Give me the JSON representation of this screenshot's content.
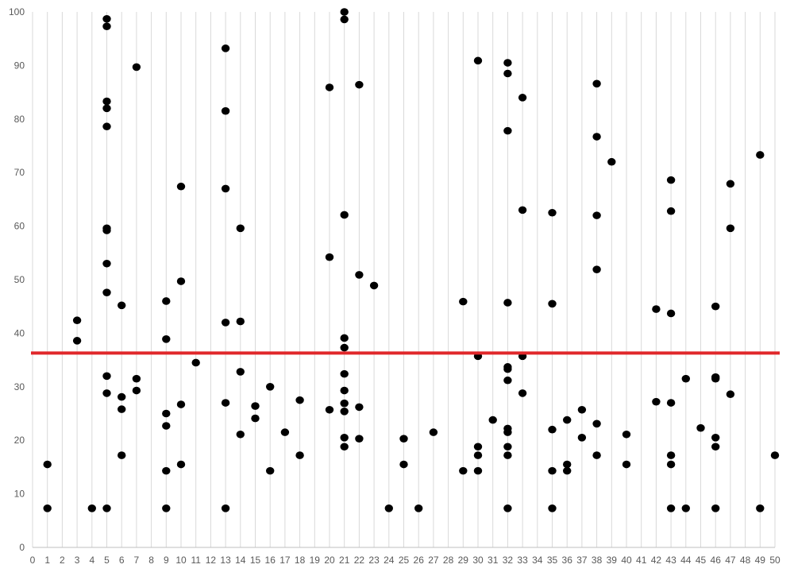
{
  "chart_data": {
    "type": "scatter",
    "xlim": [
      0,
      50
    ],
    "ylim": [
      0,
      100
    ],
    "x_ticks": [
      0,
      1,
      2,
      3,
      4,
      5,
      6,
      7,
      8,
      9,
      10,
      11,
      12,
      13,
      14,
      15,
      16,
      17,
      18,
      19,
      20,
      21,
      22,
      23,
      24,
      25,
      26,
      27,
      28,
      29,
      30,
      31,
      32,
      33,
      34,
      35,
      36,
      37,
      38,
      39,
      40,
      41,
      42,
      43,
      44,
      45,
      46,
      47,
      48,
      49,
      50
    ],
    "y_ticks": [
      0,
      10,
      20,
      30,
      40,
      50,
      60,
      70,
      80,
      90,
      100
    ],
    "grid": {
      "vertical": true,
      "horizontal": false
    },
    "legend": "none",
    "reference_line": {
      "y": 36.3,
      "color": "#e0272a"
    },
    "point_color": "#000000",
    "series": [
      {
        "points": [
          [
            1,
            15.5
          ],
          [
            1,
            7.3
          ],
          [
            3,
            42.4
          ],
          [
            3,
            38.6
          ],
          [
            4,
            7.3
          ],
          [
            5,
            98.7
          ],
          [
            5,
            97.3
          ],
          [
            5,
            83.3
          ],
          [
            5,
            82
          ],
          [
            5,
            78.6
          ],
          [
            5,
            59.6
          ],
          [
            5,
            59.2
          ],
          [
            5,
            53
          ],
          [
            5,
            47.6
          ],
          [
            5,
            32
          ],
          [
            5,
            28.8
          ],
          [
            5,
            7.3
          ],
          [
            6,
            45.2
          ],
          [
            6,
            28.1
          ],
          [
            6,
            25.8
          ],
          [
            6,
            17.2
          ],
          [
            7,
            89.7
          ],
          [
            7,
            31.5
          ],
          [
            7,
            29.3
          ],
          [
            9,
            46
          ],
          [
            9,
            38.9
          ],
          [
            9,
            25
          ],
          [
            9,
            22.7
          ],
          [
            9,
            14.3
          ],
          [
            9,
            7.3
          ],
          [
            10,
            67.4
          ],
          [
            10,
            49.7
          ],
          [
            10,
            26.7
          ],
          [
            10,
            15.5
          ],
          [
            11,
            34.5
          ],
          [
            13,
            93.2
          ],
          [
            13,
            81.5
          ],
          [
            13,
            67
          ],
          [
            13,
            42
          ],
          [
            13,
            27
          ],
          [
            13,
            7.3
          ],
          [
            14,
            59.6
          ],
          [
            14,
            42.2
          ],
          [
            14,
            32.8
          ],
          [
            14,
            21.1
          ],
          [
            15,
            26.4
          ],
          [
            15,
            24.1
          ],
          [
            16,
            30
          ],
          [
            16,
            14.3
          ],
          [
            17,
            21.5
          ],
          [
            18,
            27.5
          ],
          [
            18,
            17.2
          ],
          [
            20,
            85.9
          ],
          [
            20,
            54.2
          ],
          [
            20,
            25.7
          ],
          [
            21,
            100
          ],
          [
            21,
            98.6
          ],
          [
            21,
            62.1
          ],
          [
            21,
            39.1
          ],
          [
            21,
            37.3
          ],
          [
            21,
            32.4
          ],
          [
            21,
            29.3
          ],
          [
            21,
            26.9
          ],
          [
            21,
            25.4
          ],
          [
            21,
            20.5
          ],
          [
            21,
            18.8
          ],
          [
            22,
            86.4
          ],
          [
            22,
            50.9
          ],
          [
            22,
            26.2
          ],
          [
            22,
            20.3
          ],
          [
            23,
            48.9
          ],
          [
            24,
            7.3
          ],
          [
            25,
            20.3
          ],
          [
            25,
            15.5
          ],
          [
            26,
            7.3
          ],
          [
            27,
            21.5
          ],
          [
            29,
            45.9
          ],
          [
            29,
            14.3
          ],
          [
            30,
            90.9
          ],
          [
            30,
            35.7
          ],
          [
            30,
            18.8
          ],
          [
            30,
            17.2
          ],
          [
            30,
            14.3
          ],
          [
            31,
            23.8
          ],
          [
            32,
            90.5
          ],
          [
            32,
            88.5
          ],
          [
            32,
            77.8
          ],
          [
            32,
            45.7
          ],
          [
            32,
            33.7
          ],
          [
            32,
            33.3
          ],
          [
            32,
            31.2
          ],
          [
            32,
            22.2
          ],
          [
            32,
            21.5
          ],
          [
            32,
            18.8
          ],
          [
            32,
            17.2
          ],
          [
            32,
            7.3
          ],
          [
            33,
            84
          ],
          [
            33,
            63
          ],
          [
            33,
            35.7
          ],
          [
            33,
            28.8
          ],
          [
            35,
            62.5
          ],
          [
            35,
            45.5
          ],
          [
            35,
            22
          ],
          [
            35,
            14.3
          ],
          [
            35,
            7.3
          ],
          [
            36,
            23.8
          ],
          [
            36,
            15.5
          ],
          [
            36,
            14.3
          ],
          [
            37,
            25.7
          ],
          [
            37,
            20.5
          ],
          [
            38,
            86.6
          ],
          [
            38,
            76.7
          ],
          [
            38,
            62
          ],
          [
            38,
            51.9
          ],
          [
            38,
            23.1
          ],
          [
            38,
            17.2
          ],
          [
            39,
            72
          ],
          [
            40,
            21.1
          ],
          [
            40,
            15.5
          ],
          [
            42,
            44.5
          ],
          [
            42,
            27.2
          ],
          [
            43,
            68.6
          ],
          [
            43,
            62.8
          ],
          [
            43,
            43.7
          ],
          [
            43,
            27
          ],
          [
            43,
            17.2
          ],
          [
            43,
            15.5
          ],
          [
            43,
            7.3
          ],
          [
            44,
            31.5
          ],
          [
            44,
            7.3
          ],
          [
            45,
            22.3
          ],
          [
            46,
            45
          ],
          [
            46,
            31.8
          ],
          [
            46,
            31.5
          ],
          [
            46,
            20.5
          ],
          [
            46,
            18.8
          ],
          [
            46,
            7.3
          ],
          [
            47,
            67.9
          ],
          [
            47,
            59.6
          ],
          [
            47,
            28.6
          ],
          [
            49,
            73.3
          ],
          [
            49,
            7.3
          ],
          [
            50,
            17.2
          ]
        ]
      }
    ]
  }
}
